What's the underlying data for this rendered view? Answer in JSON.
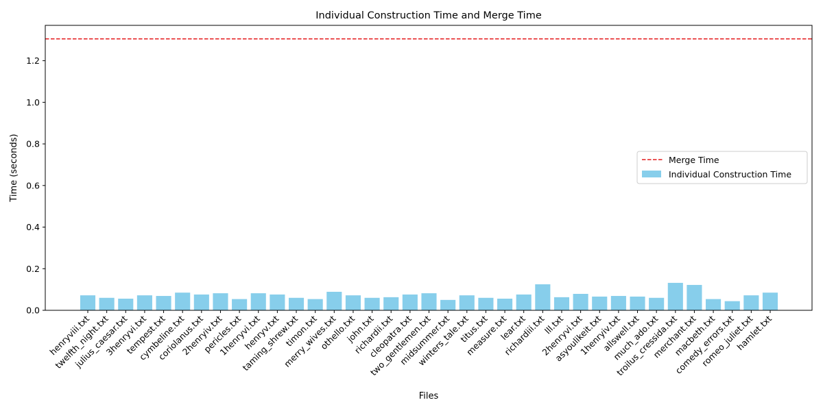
{
  "chart_data": {
    "type": "bar",
    "title": "Individual Construction Time and Merge Time",
    "xlabel": "Files",
    "ylabel": "Time (seconds)",
    "ylim": [
      0,
      1.37
    ],
    "yticks": [
      0.0,
      0.2,
      0.4,
      0.6,
      0.8,
      1.0,
      1.2
    ],
    "ytick_labels": [
      "0.0",
      "0.2",
      "0.4",
      "0.6",
      "0.8",
      "1.0",
      "1.2"
    ],
    "grid": false,
    "legend_position": "center-right",
    "categories": [
      "henryviii.txt",
      "twelfth_night.txt",
      "julius_caesar.txt",
      "3henryvi.txt",
      "tempest.txt",
      "cymbeline.txt",
      "coriolanus.txt",
      "2henryiv.txt",
      "pericles.txt",
      "1henryvi.txt",
      "henryv.txt",
      "taming_shrew.txt",
      "timon.txt",
      "merry_wives.txt",
      "othello.txt",
      "john.txt",
      "richardii.txt",
      "cleopatra.txt",
      "two_gentlemen.txt",
      "midsummer.txt",
      "winters_tale.txt",
      "titus.txt",
      "measure.txt",
      "lear.txt",
      "richardiii.txt",
      "lll.txt",
      "2henryvi.txt",
      "asyoulikeit.txt",
      "1henryiv.txt",
      "allswell.txt",
      "much_ado.txt",
      "troilus_cressida.txt",
      "merchant.txt",
      "macbeth.txt",
      "comedy_errors.txt",
      "romeo_juliet.txt",
      "hamlet.txt"
    ],
    "series": [
      {
        "name": "Individual Construction Time",
        "color": "#87ceeb",
        "values": [
          0.072,
          0.06,
          0.056,
          0.072,
          0.069,
          0.085,
          0.076,
          0.082,
          0.054,
          0.082,
          0.076,
          0.06,
          0.054,
          0.089,
          0.072,
          0.06,
          0.063,
          0.076,
          0.082,
          0.05,
          0.072,
          0.06,
          0.056,
          0.076,
          0.125,
          0.063,
          0.079,
          0.066,
          0.069,
          0.066,
          0.06,
          0.132,
          0.122,
          0.054,
          0.044,
          0.072,
          0.085
        ]
      }
    ],
    "reference_lines": [
      {
        "name": "Merge Time",
        "value": 1.305,
        "color": "#e41a1c",
        "style": "dashed"
      }
    ]
  }
}
